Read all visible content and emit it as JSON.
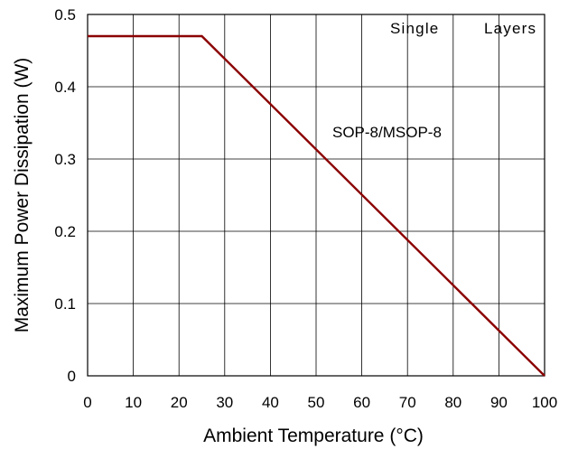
{
  "chart_data": {
    "type": "line",
    "xlabel": "Ambient Temperature (°C)",
    "ylabel": "Maximum Power Dissipation (W)",
    "xlim": [
      0,
      100
    ],
    "ylim": [
      0,
      0.5
    ],
    "x_ticks": [
      "0",
      "10",
      "20",
      "30",
      "40",
      "50",
      "60",
      "70",
      "80",
      "90",
      "100"
    ],
    "y_ticks": [
      "0",
      "0.1",
      "0.2",
      "0.3",
      "0.4",
      "0.5"
    ],
    "grid": true,
    "series": [
      {
        "name": "SOP-8/MSOP-8",
        "color": "#8b0000",
        "x": [
          0,
          25,
          100
        ],
        "y": [
          0.47,
          0.47,
          0
        ]
      }
    ],
    "annotations": {
      "legend_left": "Single",
      "legend_right": "Layers",
      "series_label": "SOP-8/MSOP-8"
    }
  }
}
